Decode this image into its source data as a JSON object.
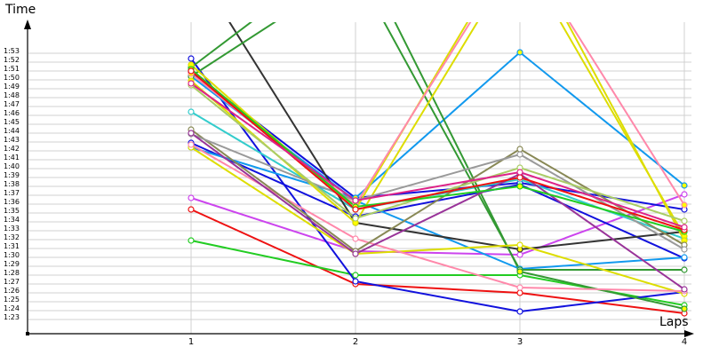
{
  "chart_data": {
    "type": "line",
    "title": "",
    "xlabel": "Laps",
    "ylabel": "Time",
    "x": [
      1,
      2,
      3,
      4
    ],
    "x_tick_labels": [
      "1",
      "2",
      "3",
      "4"
    ],
    "y_tick_labels": [
      "1:53",
      "1:52",
      "1:51",
      "1:50",
      "1:49",
      "1:48",
      "1:47",
      "1:46",
      "1:45",
      "1:44",
      "1:43",
      "1:42",
      "1:41",
      "1:40",
      "1:39",
      "1:38",
      "1:37",
      "1:36",
      "1:35",
      "1:34",
      "1:33",
      "1:32",
      "1:31",
      "1:30",
      "1:29",
      "1:28",
      "1:27",
      "1:26",
      "1:25",
      "1:24",
      "1:23"
    ],
    "ylim_seconds": [
      83,
      113
    ],
    "grid": "horizontal + vertical at laps",
    "legend": "none",
    "value_units": "seconds (lap time), values above 113 are clipped off the top of the plot",
    "series": [
      {
        "name": "red",
        "color": "#ee1111",
        "marker": "#ffffff",
        "values": [
          95.0,
          86.6,
          85.6,
          83.3
        ]
      },
      {
        "name": "green",
        "color": "#22cc22",
        "marker": "#ffffff",
        "values": [
          91.5,
          87.6,
          87.6,
          84.2
        ]
      },
      {
        "name": "violet",
        "color": "#cc44ee",
        "marker": "#ffffff",
        "values": [
          96.3,
          90.3,
          89.9,
          96.7
        ]
      },
      {
        "name": "blue-1",
        "color": "#1111dd",
        "marker": "#ffffff",
        "values": [
          112.0,
          86.9,
          83.5,
          85.7
        ]
      },
      {
        "name": "blue-2",
        "color": "#1111dd",
        "marker": "#ffffff",
        "values": [
          102.5,
          94.2,
          97.8,
          89.5
        ]
      },
      {
        "name": "blue-3",
        "color": "#1111dd",
        "marker": "#ffffff",
        "values": [
          110.5,
          96.3,
          98.0,
          95.0
        ]
      },
      {
        "name": "cyan",
        "color": "#33cccc",
        "marker": "#ffffff",
        "values": [
          106.0,
          95.0,
          98.4,
          91.7
        ]
      },
      {
        "name": "sky-blue-1",
        "color": "#1199ee",
        "marker": "#ffff00",
        "values": [
          102.0,
          96.3,
          112.7,
          97.7
        ]
      },
      {
        "name": "sky-blue-2",
        "color": "#1199ee",
        "marker": "#ffffff",
        "values": [
          110.0,
          96.0,
          88.3,
          89.6
        ]
      },
      {
        "name": "dark-gray",
        "color": "#333333",
        "marker": "#ffff00",
        "values": [
          123.0,
          93.5,
          90.5,
          92.5
        ]
      },
      {
        "name": "dark-green-1",
        "color": "#339933",
        "marker": "#ffffff",
        "values": [
          110.0,
          122.0,
          88.2,
          88.2
        ]
      },
      {
        "name": "dark-green-2",
        "color": "#339933",
        "marker": "#ffff00",
        "values": [
          111.0,
          125.0,
          88.0,
          83.8
        ]
      },
      {
        "name": "yellow-1",
        "color": "#dddd00",
        "marker": "#ffff00",
        "values": [
          109.5,
          93.5,
          124.0,
          92.0
        ]
      },
      {
        "name": "yellow-2",
        "color": "#dddd00",
        "marker": "#ffffff",
        "values": [
          102.0,
          90.0,
          91.0,
          85.5
        ]
      },
      {
        "name": "yellow-3",
        "color": "#dddd00",
        "marker": "#ffff00",
        "values": [
          111.3,
          95.0,
          126.0,
          91.5
        ]
      },
      {
        "name": "pink-1",
        "color": "#ff88aa",
        "marker": "#ffffff",
        "values": [
          102.3,
          91.7,
          86.2,
          85.8
        ]
      },
      {
        "name": "pink-2",
        "color": "#ff88aa",
        "marker": "#ffff00",
        "values": [
          110.3,
          95.5,
          125.0,
          95.5
        ]
      },
      {
        "name": "olive",
        "color": "#888855",
        "marker": "#ffffff",
        "values": [
          104.0,
          90.3,
          101.8,
          91.0
        ]
      },
      {
        "name": "gray",
        "color": "#999999",
        "marker": "#ffffff",
        "values": [
          103.5,
          96.0,
          101.2,
          90.5
        ]
      },
      {
        "name": "light-green",
        "color": "#aacc66",
        "marker": "#ffffff",
        "values": [
          109.0,
          94.0,
          99.7,
          93.7
        ]
      },
      {
        "name": "purple",
        "color": "#993399",
        "marker": "#ffffff",
        "values": [
          103.6,
          90.0,
          99.0,
          86.0
        ]
      },
      {
        "name": "green-2",
        "color": "#22cc22",
        "marker": "#ffff00",
        "values": [
          110.8,
          95.3,
          97.6,
          92.5
        ]
      },
      {
        "name": "red-2",
        "color": "#ee1111",
        "marker": "#ffffff",
        "values": [
          110.6,
          95.0,
          98.6,
          92.7
        ]
      },
      {
        "name": "magenta",
        "color": "#dd2288",
        "marker": "#ffffff",
        "values": [
          109.2,
          96.0,
          99.2,
          93.0
        ]
      }
    ]
  },
  "axes": {
    "y_title": "Time",
    "x_title": "Laps"
  }
}
